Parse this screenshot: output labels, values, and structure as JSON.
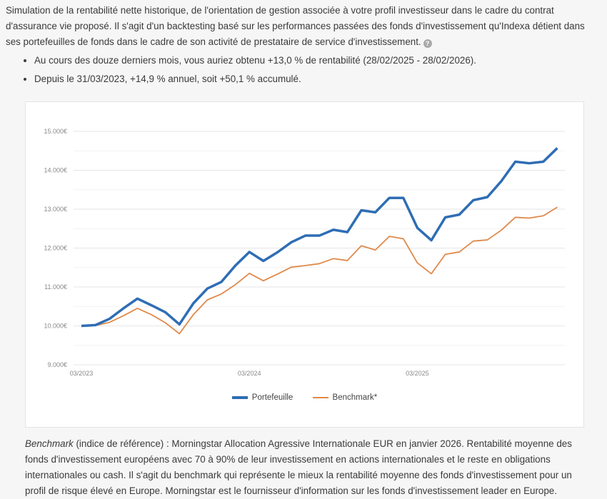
{
  "intro": {
    "paragraph": "Simulation de la rentabilité nette historique, de l'orientation de gestion associée à votre profil investisseur dans le cadre du contrat d'assurance vie proposé. Il s'agit d'un backtesting basé sur les performances passées des fonds d'investissement qu'Indexa détient dans ses portefeuilles de fonds dans le cadre de son activité de prestataire de service d'investissement.",
    "help_icon": "question-circle-icon",
    "bullets": [
      "Au cours des douze derniers mois, vous auriez obtenu +13,0 % de rentabilité (28/02/2025 - 28/02/2026).",
      "Depuis le 31/03/2023, +14,9 % annuel, soit +50,1 % accumulé."
    ]
  },
  "chart_data": {
    "type": "line",
    "title": "",
    "xlabel": "",
    "ylabel": "",
    "ylim": [
      9000,
      15000
    ],
    "yticks": [
      "9.000€",
      "10.000€",
      "11.000€",
      "12.000€",
      "13.000€",
      "14.000€",
      "15.000€"
    ],
    "ytick_values": [
      9000,
      10000,
      11000,
      12000,
      13000,
      14000,
      15000
    ],
    "xticks": [
      "03/2023",
      "03/2024",
      "03/2025"
    ],
    "grid": true,
    "legend": "bottom",
    "x": [
      "03/2023",
      "04/2023",
      "05/2023",
      "06/2023",
      "07/2023",
      "08/2023",
      "09/2023",
      "10/2023",
      "11/2023",
      "12/2023",
      "01/2024",
      "02/2024",
      "03/2024",
      "04/2024",
      "05/2024",
      "06/2024",
      "07/2024",
      "08/2024",
      "09/2024",
      "10/2024",
      "11/2024",
      "12/2024",
      "01/2025",
      "02/2025",
      "03/2025",
      "04/2025",
      "05/2025",
      "06/2025",
      "07/2025",
      "08/2025",
      "09/2025",
      "10/2025",
      "11/2025",
      "12/2025",
      "01/2026"
    ],
    "series": [
      {
        "name": "Portefeuille",
        "color": "#2e6db4",
        "values": [
          10000,
          10020,
          10180,
          10450,
          10700,
          10530,
          10350,
          10040,
          10580,
          10960,
          11130,
          11550,
          11900,
          11670,
          11890,
          12150,
          12320,
          12320,
          12470,
          12410,
          12970,
          12920,
          13290,
          13290,
          12520,
          12200,
          12790,
          12860,
          13230,
          13310,
          13720,
          14220,
          14180,
          14220,
          14570
        ]
      },
      {
        "name": "Benchmark*",
        "color": "#e0894a",
        "values": [
          10000,
          10010,
          10090,
          10260,
          10450,
          10290,
          10080,
          9800,
          10290,
          10670,
          10820,
          11060,
          11350,
          11160,
          11330,
          11510,
          11550,
          11600,
          11730,
          11680,
          12060,
          11950,
          12300,
          12240,
          11620,
          11340,
          11840,
          11900,
          12180,
          12210,
          12460,
          12790,
          12770,
          12830,
          13050
        ]
      }
    ]
  },
  "footnote": {
    "italic_term": "Benchmark",
    "text": " (indice de référence) : Morningstar Allocation Agressive Internationale EUR en janvier 2026. Rentabilité moyenne des fonds d'investissement européens avec 70 à 90% de leur investissement en actions internationales et le reste en obligations internationales ou cash. Il s'agit du benchmark qui représente le mieux la rentabilité moyenne des fonds d'investissement pour un profil de risque élevé en Europe. Morningstar est le fournisseur d'information sur les fonds d'investissement leader en Europe."
  }
}
